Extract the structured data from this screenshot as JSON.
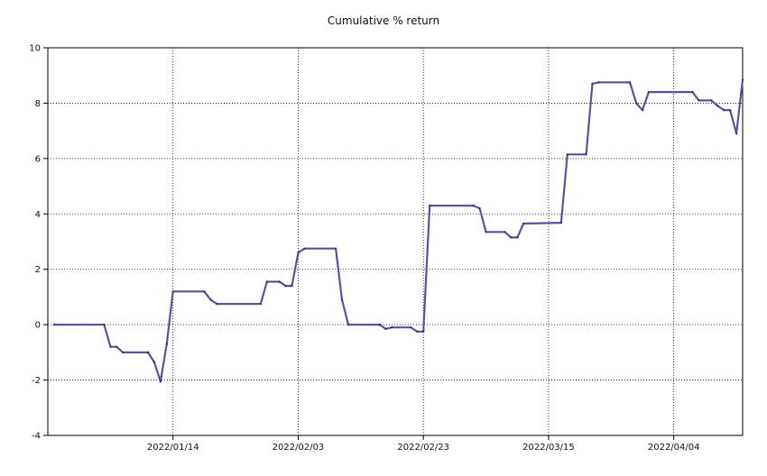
{
  "chart_data": {
    "type": "line",
    "title": "Cumulative % return",
    "xlabel": "",
    "ylabel": "",
    "ylim": [
      -4,
      10
    ],
    "xlim": [
      "2021-12-25",
      "2022-04-15"
    ],
    "yticks": [
      -4,
      -2,
      0,
      2,
      4,
      6,
      8,
      10
    ],
    "xticks": [
      {
        "date": "2022-01-14",
        "label": "2022/01/14"
      },
      {
        "date": "2022-02-03",
        "label": "2022/02/03"
      },
      {
        "date": "2022-02-23",
        "label": "2022/02/23"
      },
      {
        "date": "2022-03-15",
        "label": "2022/03/15"
      },
      {
        "date": "2022-04-04",
        "label": "2022/04/04"
      }
    ],
    "grid": true,
    "series": [
      {
        "color": "#5b5ba8",
        "points": [
          [
            "2021-12-26",
            0.0
          ],
          [
            "2022-01-03",
            0.0
          ],
          [
            "2022-01-04",
            -0.8
          ],
          [
            "2022-01-05",
            -0.8
          ],
          [
            "2022-01-06",
            -1.0
          ],
          [
            "2022-01-10",
            -1.0
          ],
          [
            "2022-01-11",
            -1.35
          ],
          [
            "2022-01-12",
            -2.05
          ],
          [
            "2022-01-13",
            -0.7
          ],
          [
            "2022-01-14",
            1.2
          ],
          [
            "2022-01-19",
            1.2
          ],
          [
            "2022-01-20",
            0.9
          ],
          [
            "2022-01-21",
            0.75
          ],
          [
            "2022-01-28",
            0.75
          ],
          [
            "2022-01-29",
            1.55
          ],
          [
            "2022-01-31",
            1.55
          ],
          [
            "2022-02-01",
            1.4
          ],
          [
            "2022-02-02",
            1.4
          ],
          [
            "2022-02-03",
            2.6
          ],
          [
            "2022-02-04",
            2.75
          ],
          [
            "2022-02-09",
            2.75
          ],
          [
            "2022-02-10",
            0.9
          ],
          [
            "2022-02-11",
            0.0
          ],
          [
            "2022-02-16",
            0.0
          ],
          [
            "2022-02-17",
            -0.15
          ],
          [
            "2022-02-18",
            -0.1
          ],
          [
            "2022-02-21",
            -0.1
          ],
          [
            "2022-02-22",
            -0.25
          ],
          [
            "2022-02-23",
            -0.25
          ],
          [
            "2022-02-24",
            4.3
          ],
          [
            "2022-03-03",
            4.3
          ],
          [
            "2022-03-04",
            4.2
          ],
          [
            "2022-03-05",
            3.35
          ],
          [
            "2022-03-08",
            3.35
          ],
          [
            "2022-03-09",
            3.15
          ],
          [
            "2022-03-10",
            3.15
          ],
          [
            "2022-03-11",
            3.65
          ],
          [
            "2022-03-17",
            3.68
          ],
          [
            "2022-03-18",
            6.15
          ],
          [
            "2022-03-21",
            6.15
          ],
          [
            "2022-03-22",
            8.7
          ],
          [
            "2022-03-23",
            8.75
          ],
          [
            "2022-03-28",
            8.75
          ],
          [
            "2022-03-29",
            8.0
          ],
          [
            "2022-03-30",
            7.75
          ],
          [
            "2022-03-31",
            8.4
          ],
          [
            "2022-04-07",
            8.4
          ],
          [
            "2022-04-08",
            8.1
          ],
          [
            "2022-04-10",
            8.1
          ],
          [
            "2022-04-11",
            7.9
          ],
          [
            "2022-04-12",
            7.75
          ],
          [
            "2022-04-13",
            7.75
          ],
          [
            "2022-04-14",
            6.9
          ],
          [
            "2022-04-15",
            8.85
          ]
        ]
      }
    ]
  }
}
